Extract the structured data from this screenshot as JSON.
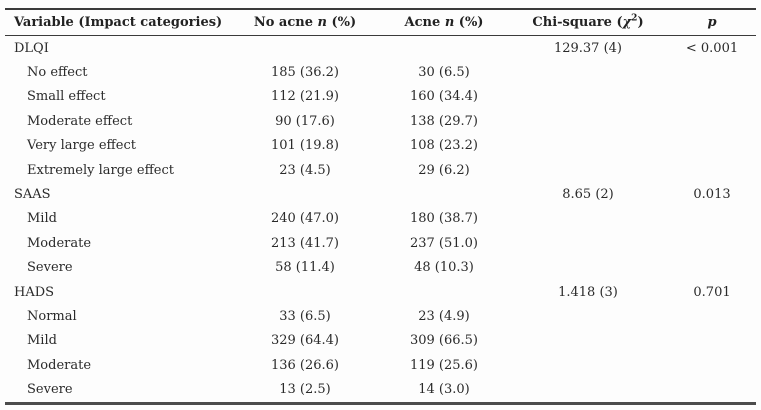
{
  "header": {
    "variable": "Variable (Impact categories)",
    "no_acne": {
      "pre": "No acne ",
      "n": "n",
      "post": " (%)"
    },
    "acne": {
      "pre": "Acne ",
      "n": "n",
      "post": " (%)"
    },
    "chi": {
      "pre": "Chi-square (",
      "sym": "χ",
      "sup": "2",
      "post": ")"
    },
    "p": "p"
  },
  "rows": [
    {
      "label": "DLQI",
      "indent": false,
      "no_acne": "",
      "acne": "",
      "chi": "129.37 (4)",
      "p": "< 0.001"
    },
    {
      "label": "No effect",
      "indent": true,
      "no_acne": "185 (36.2)",
      "acne": "30 (6.5)",
      "chi": "",
      "p": ""
    },
    {
      "label": "Small effect",
      "indent": true,
      "no_acne": "112 (21.9)",
      "acne": "160 (34.4)",
      "chi": "",
      "p": ""
    },
    {
      "label": "Moderate effect",
      "indent": true,
      "no_acne": "90 (17.6)",
      "acne": "138 (29.7)",
      "chi": "",
      "p": ""
    },
    {
      "label": "Very large effect",
      "indent": true,
      "no_acne": "101 (19.8)",
      "acne": "108 (23.2)",
      "chi": "",
      "p": ""
    },
    {
      "label": "Extremely large effect",
      "indent": true,
      "no_acne": "23 (4.5)",
      "acne": "29 (6.2)",
      "chi": "",
      "p": ""
    },
    {
      "label": "SAAS",
      "indent": false,
      "no_acne": "",
      "acne": "",
      "chi": "8.65 (2)",
      "p": "0.013"
    },
    {
      "label": "Mild",
      "indent": true,
      "no_acne": "240 (47.0)",
      "acne": "180 (38.7)",
      "chi": "",
      "p": ""
    },
    {
      "label": "Moderate",
      "indent": true,
      "no_acne": "213 (41.7)",
      "acne": "237 (51.0)",
      "chi": "",
      "p": ""
    },
    {
      "label": "Severe",
      "indent": true,
      "no_acne": "58 (11.4)",
      "acne": "48 (10.3)",
      "chi": "",
      "p": ""
    },
    {
      "label": "HADS",
      "indent": false,
      "no_acne": "",
      "acne": "",
      "chi": "1.418 (3)",
      "p": "0.701"
    },
    {
      "label": "Normal",
      "indent": true,
      "no_acne": "33 (6.5)",
      "acne": "23 (4.9)",
      "chi": "",
      "p": ""
    },
    {
      "label": "Mild",
      "indent": true,
      "no_acne": "329 (64.4)",
      "acne": "309 (66.5)",
      "chi": "",
      "p": ""
    },
    {
      "label": "Moderate",
      "indent": true,
      "no_acne": "136 (26.6)",
      "acne": "119 (25.6)",
      "chi": "",
      "p": ""
    },
    {
      "label": "Severe",
      "indent": true,
      "no_acne": "13 (2.5)",
      "acne": "14 (3.0)",
      "chi": "",
      "p": ""
    }
  ]
}
